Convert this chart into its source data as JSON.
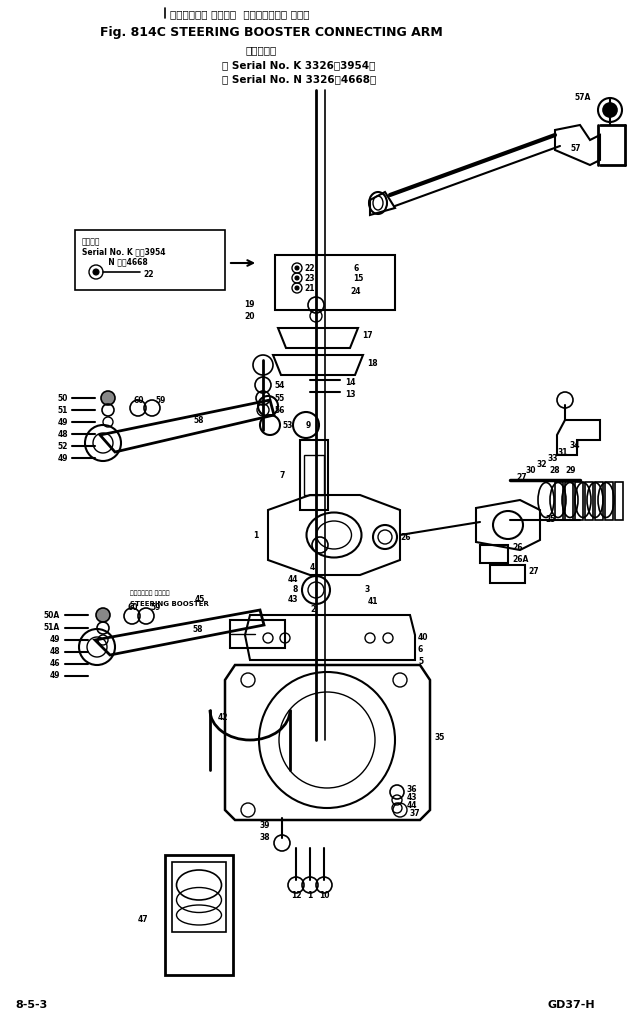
{
  "title_japanese": "ステアリング ブースタ  コネクティング アーム",
  "title_english": "Fig. 814C STEERING BOOSTER CONNECTING ARM",
  "serial_line1": "（適用号機",
  "serial_line2": "（ Serial No. K 3326～3954）",
  "serial_line3": "（ Serial No. N 3326～4668）",
  "inset_text": "適用号機\nSerial No. K ・～3954\n          N ・～4668",
  "booster_jp": "ステアリング ブースタ",
  "booster_en": "STEERING BOOSTER",
  "bottom_left": "8-5-3",
  "bottom_right": "GD37-H",
  "bg_color": "#ffffff",
  "fg_color": "#000000",
  "fig_width": 6.41,
  "fig_height": 10.19,
  "dpi": 100
}
